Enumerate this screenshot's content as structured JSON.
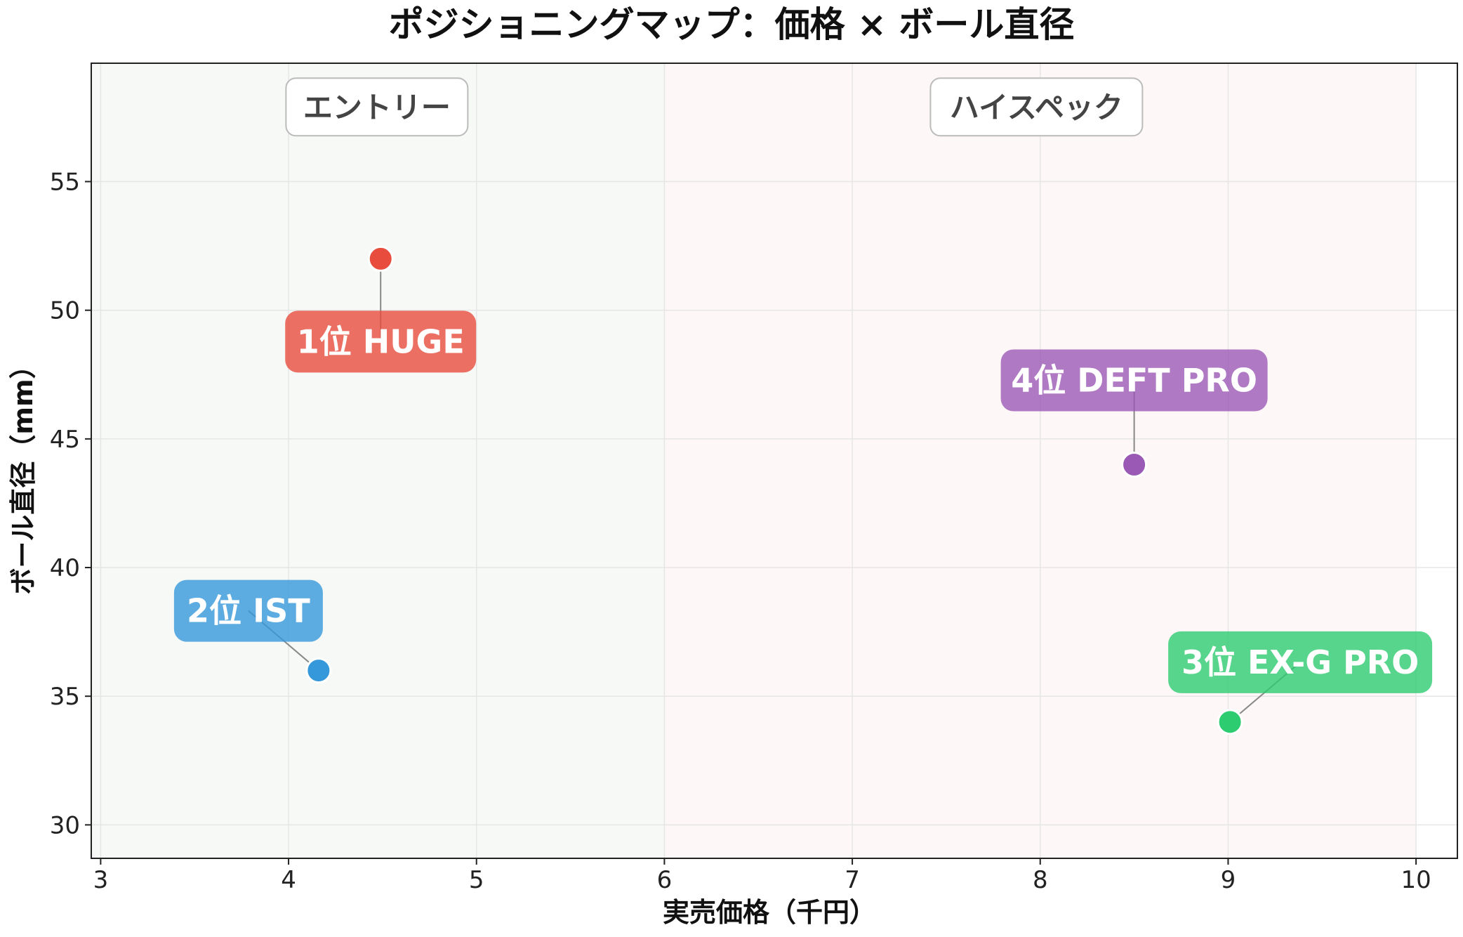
{
  "chart_data": {
    "type": "scatter",
    "title": "ポジショニングマップ：価格 × ボール直径",
    "xlabel": "実売価格（千円）",
    "ylabel": "ボール直径（mm）",
    "xlim": [
      2.95,
      10.22
    ],
    "ylim": [
      28.7,
      59.6
    ],
    "xticks": [
      3,
      4,
      5,
      6,
      7,
      8,
      9,
      10
    ],
    "yticks": [
      30,
      35,
      40,
      45,
      50,
      55
    ],
    "grid": true,
    "zones": [
      {
        "label": "エントリー",
        "x_range": [
          2.95,
          6
        ],
        "color": "#f7f9f7"
      },
      {
        "label": "ハイスペック",
        "x_range": [
          6,
          10
        ],
        "color": "#fdf7f7"
      }
    ],
    "points": [
      {
        "label": "1位 HUGE",
        "x": 4.49,
        "y": 52,
        "color": "#e74c3c"
      },
      {
        "label": "2位 IST",
        "x": 4.16,
        "y": 36,
        "color": "#3498db"
      },
      {
        "label": "3位 EX-G PRO",
        "x": 9.01,
        "y": 34,
        "color": "#2ecc71"
      },
      {
        "label": "4位 DEFT PRO",
        "x": 8.5,
        "y": 44,
        "color": "#9b59b6"
      }
    ]
  }
}
